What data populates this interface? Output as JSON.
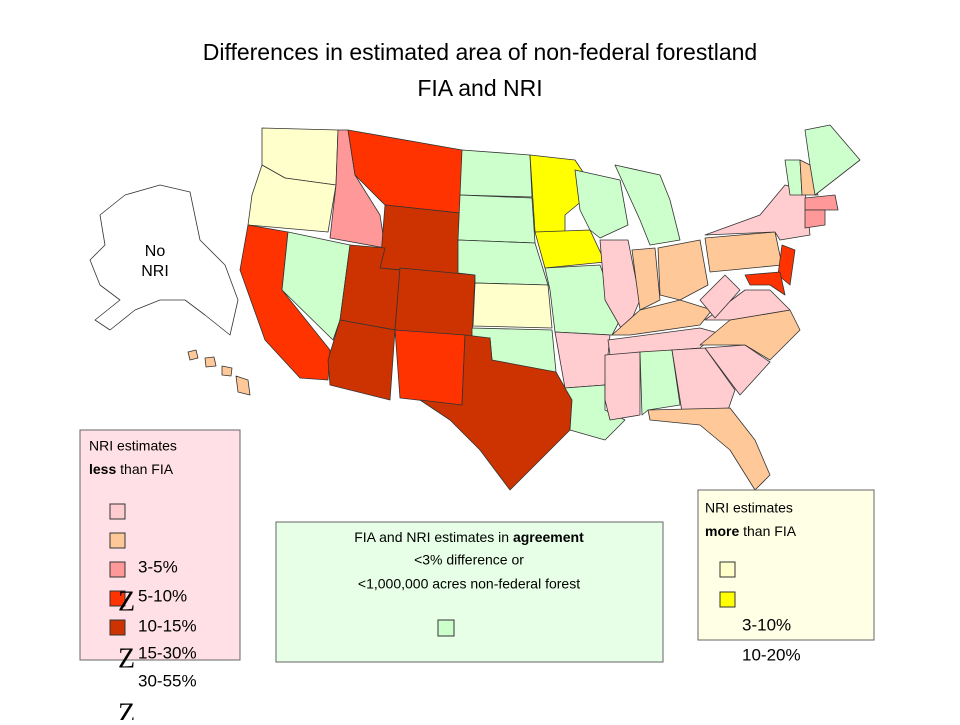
{
  "title": {
    "line1": "Differences in estimated area of non-federal forestland",
    "line2": "FIA and NRI"
  },
  "alaska_label": {
    "line1": "No",
    "line2": "NRI"
  },
  "legend_less": {
    "line1": "NRI estimates",
    "line2_bold": "less",
    "line2_rest": " than FIA",
    "labels": [
      "3-5%",
      "5-10%",
      "10-15%",
      "15-30%",
      "30-55%"
    ]
  },
  "legend_agreement": {
    "line1_rest": "FIA and NRI estimates in ",
    "line1_bold": "agreement",
    "line2": "<3% difference or",
    "line3": "<1,000,000 acres non-federal forest"
  },
  "legend_more": {
    "line1": "NRI estimates",
    "line2_bold": "more",
    "line2_rest": " than FIA",
    "labels": [
      "3-10%",
      "10-20%"
    ]
  },
  "artifacts": [
    "Z",
    "Z",
    "Z"
  ]
}
